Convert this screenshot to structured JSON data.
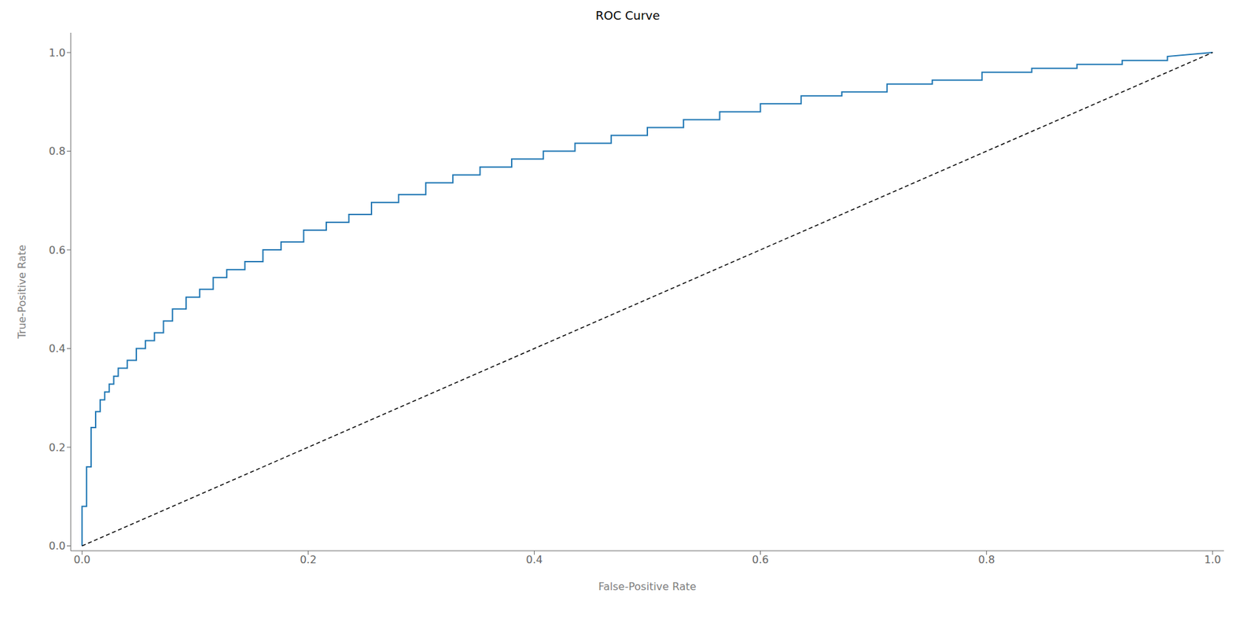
{
  "chart_data": {
    "type": "line",
    "title": "ROC Curve",
    "xlabel": "False-Positive Rate",
    "ylabel": "True-Positive Rate",
    "xlim": [
      -0.01,
      1.01
    ],
    "ylim": [
      -0.01,
      1.04
    ],
    "xticks": [
      {
        "value": 0.0,
        "label": "0.0"
      },
      0.2,
      0.4,
      0.6,
      0.8,
      {
        "value": 1.0,
        "label": "1.0"
      }
    ],
    "yticks": [
      {
        "value": 0.0,
        "label": "0.0"
      },
      0.2,
      0.4,
      0.6,
      0.8,
      {
        "value": 1.0,
        "label": "1.0"
      }
    ],
    "grid": false,
    "series": [
      {
        "color": "#1f77b4",
        "line_style": "solid",
        "x": [
          0.0,
          0.0,
          0.0,
          0.0,
          0.004,
          0.004,
          0.008,
          0.008,
          0.008,
          0.012,
          0.012,
          0.016,
          0.016,
          0.02,
          0.02,
          0.024,
          0.024,
          0.028,
          0.028,
          0.032,
          0.032,
          0.04,
          0.04,
          0.048,
          0.048,
          0.056,
          0.056,
          0.064,
          0.064,
          0.072,
          0.072,
          0.08,
          0.08,
          0.092,
          0.092,
          0.104,
          0.104,
          0.116,
          0.116,
          0.128,
          0.128,
          0.144,
          0.144,
          0.16,
          0.16,
          0.176,
          0.176,
          0.196,
          0.196,
          0.216,
          0.216,
          0.236,
          0.236,
          0.256,
          0.256,
          0.28,
          0.28,
          0.304,
          0.304,
          0.328,
          0.328,
          0.352,
          0.352,
          0.38,
          0.38,
          0.408,
          0.408,
          0.436,
          0.436,
          0.468,
          0.468,
          0.5,
          0.5,
          0.532,
          0.532,
          0.564,
          0.564,
          0.6,
          0.6,
          0.636,
          0.636,
          0.672,
          0.672,
          0.712,
          0.712,
          0.752,
          0.752,
          0.796,
          0.796,
          0.84,
          0.84,
          0.88,
          0.88,
          0.92,
          0.92,
          0.96,
          0.96,
          1.0
        ],
        "values": [
          0.0,
          0.008,
          0.072,
          0.08,
          0.08,
          0.16,
          0.16,
          0.168,
          0.24,
          0.24,
          0.272,
          0.272,
          0.296,
          0.296,
          0.312,
          0.312,
          0.328,
          0.328,
          0.344,
          0.344,
          0.36,
          0.36,
          0.376,
          0.376,
          0.4,
          0.4,
          0.416,
          0.416,
          0.432,
          0.432,
          0.456,
          0.456,
          0.48,
          0.48,
          0.504,
          0.504,
          0.52,
          0.52,
          0.544,
          0.544,
          0.56,
          0.56,
          0.576,
          0.576,
          0.6,
          0.6,
          0.616,
          0.616,
          0.64,
          0.64,
          0.656,
          0.656,
          0.672,
          0.672,
          0.696,
          0.696,
          0.712,
          0.712,
          0.736,
          0.736,
          0.752,
          0.752,
          0.768,
          0.768,
          0.784,
          0.784,
          0.8,
          0.8,
          0.816,
          0.816,
          0.832,
          0.832,
          0.848,
          0.848,
          0.864,
          0.864,
          0.88,
          0.88,
          0.896,
          0.896,
          0.912,
          0.912,
          0.92,
          0.92,
          0.936,
          0.936,
          0.944,
          0.944,
          0.96,
          0.96,
          0.968,
          0.968,
          0.976,
          0.976,
          0.984,
          0.984,
          0.992,
          1.0
        ]
      },
      {
        "color": "black",
        "line_style": "dashed",
        "x": [
          0,
          1
        ],
        "values": [
          0,
          1
        ]
      }
    ]
  }
}
